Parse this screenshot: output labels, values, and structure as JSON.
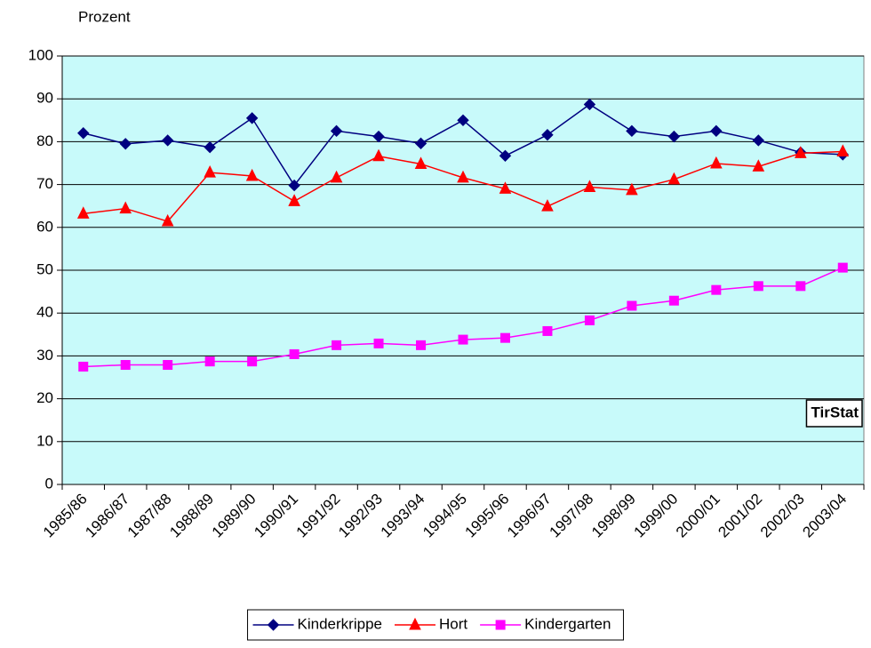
{
  "chart_data": {
    "type": "line",
    "y_label": "Prozent",
    "annotation": "TirStat",
    "categories": [
      "1985/86",
      "1986/87",
      "1987/88",
      "1988/89",
      "1989/90",
      "1990/91",
      "1991/92",
      "1992/93",
      "1993/94",
      "1994/95",
      "1995/96",
      "1996/97",
      "1997/98",
      "1998/99",
      "1999/00",
      "2000/01",
      "2001/02",
      "2002/03",
      "2003/04"
    ],
    "series": [
      {
        "name": "Kinderkrippe",
        "color": "#000080",
        "marker": "diamond",
        "values": [
          82,
          79.5,
          80.3,
          78.7,
          85.5,
          69.8,
          82.5,
          81.2,
          79.6,
          85,
          76.7,
          81.6,
          88.7,
          82.5,
          81.2,
          82.5,
          80.3,
          77.5,
          77
        ]
      },
      {
        "name": "Hort",
        "color": "#ff0000",
        "marker": "triangle",
        "values": [
          63.2,
          64.4,
          61.4,
          72.8,
          72,
          66.1,
          71.6,
          76.6,
          74.8,
          71.6,
          69,
          64.9,
          69.4,
          68.7,
          71.2,
          74.9,
          74.2,
          77.3,
          77.7
        ]
      },
      {
        "name": "Kindergarten",
        "color": "#ff00ff",
        "marker": "square",
        "values": [
          27.5,
          27.9,
          27.9,
          28.7,
          28.7,
          30.4,
          32.5,
          32.9,
          32.5,
          33.8,
          34.2,
          35.8,
          38.3,
          41.7,
          42.9,
          45.4,
          46.3,
          46.3,
          50.6
        ]
      }
    ],
    "ylim": [
      0,
      100
    ],
    "yticks": [
      0,
      10,
      20,
      30,
      40,
      50,
      60,
      70,
      80,
      90,
      100
    ],
    "grid": true,
    "plot_background": "#c8fafa"
  }
}
